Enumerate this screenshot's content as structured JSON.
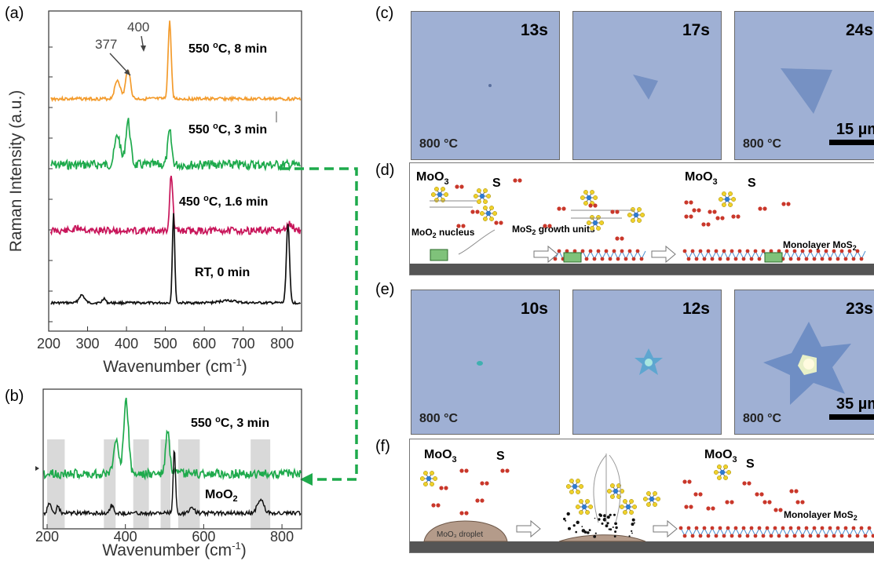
{
  "panels": {
    "a": "(a)",
    "b": "(b)",
    "c": "(c)",
    "d": "(d)",
    "e": "(e)",
    "f": "(f)"
  },
  "plot_a": {
    "ylabel": "Raman Intensity (a.u.)",
    "xlabel": "Wavenumber (cm",
    "xlabel_sup": "-1",
    "xlabel_end": ")",
    "ticks": [
      "200",
      "300",
      "400",
      "500",
      "600",
      "700",
      "800"
    ],
    "peak_377": "377",
    "peak_400": "400",
    "labels": [
      {
        "main": "550 ",
        "sup": "o",
        "rest": "C, 8 min"
      },
      {
        "main": "550 ",
        "sup": "o",
        "rest": "C, 3 min"
      },
      {
        "main": "450 ",
        "sup": "o",
        "rest": "C, 1.6 min"
      },
      {
        "main": "RT, 0 min",
        "sup": "",
        "rest": ""
      }
    ]
  },
  "plot_b": {
    "xlabel": "Wavenumber (cm",
    "xlabel_sup": "-1",
    "xlabel_end": ")",
    "ticks": [
      "200",
      "400",
      "600",
      "800"
    ],
    "label_main": "550 ",
    "label_sup": "o",
    "label_rest": "C, 3 min",
    "moo2_main": "MoO",
    "moo2_sub": "2"
  },
  "micro_c": [
    {
      "time": "13s",
      "temp": "800 °C"
    },
    {
      "time": "17s",
      "temp": ""
    },
    {
      "time": "24s",
      "temp": "800 °C",
      "scale": "15 µm"
    }
  ],
  "micro_e": [
    {
      "time": "10s",
      "temp": "800 °C"
    },
    {
      "time": "12s",
      "temp": ""
    },
    {
      "time": "23s",
      "temp": "800 °C",
      "scale": "35 µm"
    }
  ],
  "schematic_d": {
    "moo3_main": "MoO",
    "moo3_sub": "3",
    "s": "S",
    "nucleus_main": "MoO",
    "nucleus_sub": "2",
    "nucleus_rest": " nucleus",
    "growth_main": "MoS",
    "growth_sub": "2",
    "growth_rest": " growth units",
    "moo3b_main": "MoO",
    "moo3b_sub": "3",
    "s2": "S",
    "mono_main": "Monolayer MoS",
    "mono_sub": "2"
  },
  "schematic_f": {
    "moo3_main": "MoO",
    "moo3_sub": "3",
    "s": "S",
    "droplet": "MoO₃ droplet",
    "moo3b_main": "MoO",
    "moo3b_sub": "3",
    "s2": "S",
    "mono_main": "Monolayer MoS",
    "mono_sub": "2"
  },
  "colors": {
    "orange": "#f39b2c",
    "green": "#1eaa4c",
    "magenta": "#c8155a",
    "black": "#111111",
    "mo_blue": "#2f7ad0",
    "s_yellow": "#f0d12a",
    "o_red": "#c9372a"
  }
}
